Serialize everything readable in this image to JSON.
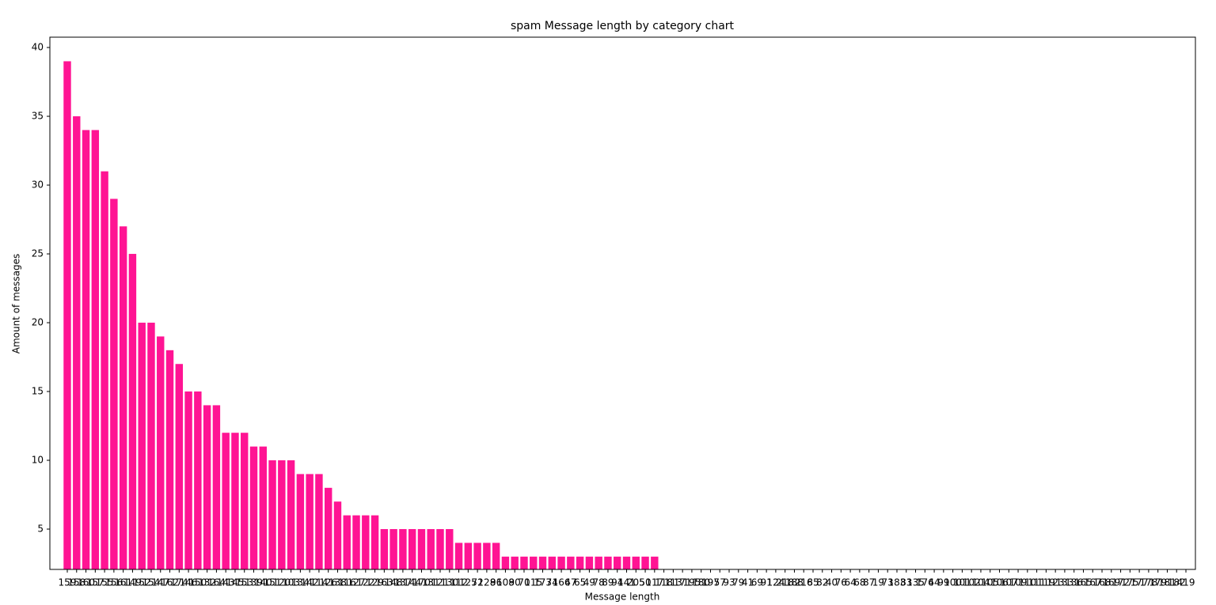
{
  "chart_data": {
    "type": "bar",
    "title": "spam Message length by category chart",
    "x_label": "Message length",
    "y_label": "Amount of messages",
    "categories": [
      159,
      158,
      160,
      157,
      155,
      156,
      161,
      149,
      152,
      154,
      147,
      162,
      174,
      146,
      150,
      132,
      164,
      143,
      145,
      153,
      139,
      140,
      151,
      120,
      103,
      134,
      142,
      114,
      126,
      138,
      116,
      127,
      122,
      129,
      163,
      148,
      137,
      144,
      170,
      131,
      121,
      130,
      112,
      125,
      72,
      128,
      96,
      108,
      90,
      70,
      115,
      173,
      74,
      166,
      47,
      65,
      49,
      78,
      89,
      94,
      141,
      205,
      50,
      117,
      118,
      113,
      171,
      195,
      180,
      197,
      57,
      93,
      79,
      41,
      69,
      91,
      124,
      218,
      188,
      216,
      85,
      82,
      40,
      76,
      64,
      68,
      87,
      19,
      73,
      183,
      83,
      135,
      176,
      44,
      99,
      100,
      101,
      102,
      104,
      105,
      106,
      107,
      109,
      110,
      111,
      119,
      123,
      133,
      136,
      165,
      167,
      168,
      169,
      172,
      175,
      177,
      178,
      179,
      181,
      182,
      419
    ],
    "values": [
      39,
      35,
      34,
      34,
      31,
      29,
      27,
      25,
      20,
      20,
      19,
      18,
      17,
      15,
      15,
      14,
      14,
      12,
      12,
      12,
      11,
      11,
      10,
      10,
      10,
      9,
      9,
      9,
      8,
      7,
      6,
      6,
      6,
      6,
      5,
      5,
      5,
      5,
      5,
      5,
      5,
      5,
      4,
      4,
      4,
      4,
      4,
      3,
      3,
      3,
      3,
      3,
      3,
      3,
      3,
      3,
      3,
      3,
      3,
      3,
      3,
      3,
      3,
      3,
      2,
      2,
      2,
      2,
      2,
      2,
      2,
      2,
      2,
      2,
      2,
      2,
      2,
      2,
      2,
      2,
      2,
      2,
      2,
      2,
      1,
      1,
      1,
      1,
      1,
      1,
      1,
      1,
      1,
      1,
      1,
      1,
      1,
      1,
      1,
      1,
      1,
      1,
      1,
      1,
      1,
      1,
      1,
      1,
      1,
      1,
      1,
      1,
      1,
      1,
      1,
      1,
      1,
      1,
      1,
      1,
      1
    ],
    "color": "#ff1493",
    "ylim": [
      2.07,
      40.75
    ],
    "yticks": [
      5,
      10,
      15,
      20,
      25,
      30,
      35,
      40
    ],
    "grid": false
  }
}
